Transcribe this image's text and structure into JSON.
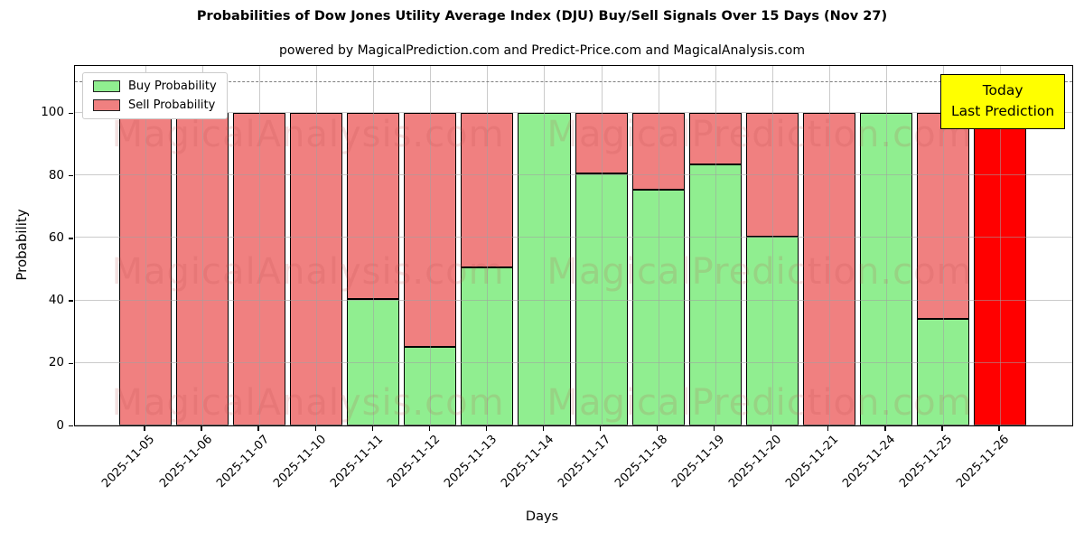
{
  "chart_data": {
    "type": "bar",
    "stacked": true,
    "title": "Probabilities of Dow Jones Utility Average Index (DJU) Buy/Sell Signals Over 15 Days (Nov 27)",
    "subtitle": "powered by MagicalPrediction.com and Predict-Price.com and MagicalAnalysis.com",
    "xlabel": "Days",
    "ylabel": "Probability",
    "ylim": [
      0,
      115
    ],
    "yticks": [
      0,
      20,
      40,
      60,
      80,
      100
    ],
    "grid": true,
    "legend_position": "upper left",
    "dashed_guide_y": 110,
    "categories": [
      "2025-11-05",
      "2025-11-06",
      "2025-11-07",
      "2025-11-10",
      "2025-11-11",
      "2025-11-12",
      "2025-11-13",
      "2025-11-14",
      "2025-11-17",
      "2025-11-18",
      "2025-11-19",
      "2025-11-20",
      "2025-11-21",
      "2025-11-24",
      "2025-11-25",
      "2025-11-26"
    ],
    "series": [
      {
        "name": "Buy Probability",
        "color": "#90EE90",
        "values": [
          0,
          0,
          0,
          0,
          40.5,
          25,
          50.5,
          100,
          80.5,
          75.5,
          83.5,
          60.5,
          0,
          100,
          34,
          0
        ]
      },
      {
        "name": "Sell Probability",
        "color": "#F08080",
        "values": [
          100,
          100,
          100,
          100,
          59.5,
          75,
          49.5,
          0,
          19.5,
          24.5,
          16.5,
          39.5,
          100,
          0,
          66,
          0
        ]
      }
    ],
    "special_last_bar": {
      "category": "2025-11-26",
      "color": "#FF0000",
      "height": 100
    },
    "annotation_box": {
      "lines": [
        "Today",
        "Last Prediction"
      ],
      "bg_color": "#FFFF00"
    },
    "watermarks": [
      "MagicalAnalysis.com",
      "MagicalPrediction.com"
    ]
  }
}
